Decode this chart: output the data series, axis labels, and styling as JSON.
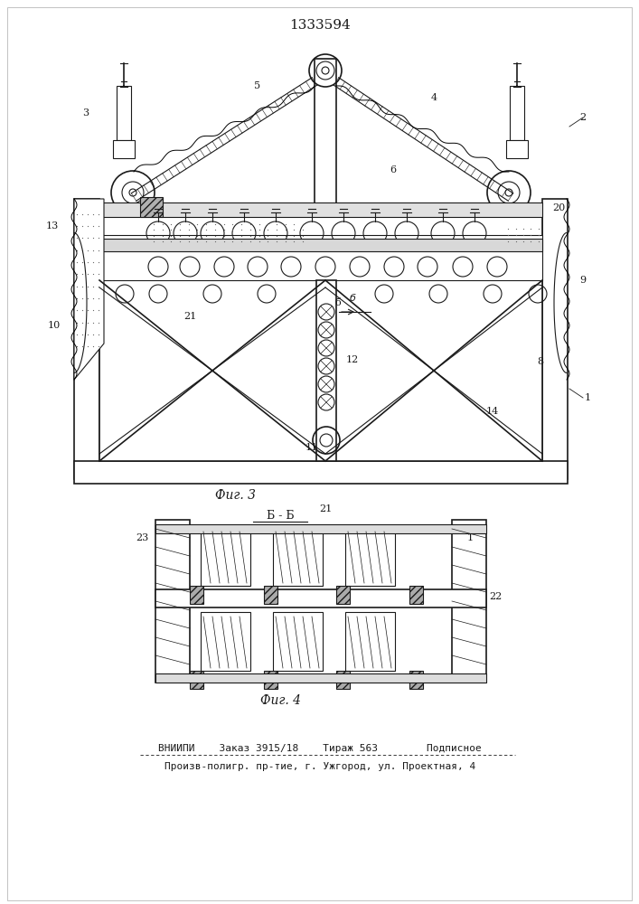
{
  "patent_number": "1333594",
  "fig3_label": "Фиг. 3",
  "fig4_label": "Фиг. 4",
  "footer_line1": "ВНИИПИ    Заказ 3915/18    Тираж 563        Подписное",
  "footer_line2": "Произв-полигр. пр-тие, г. Ужгород, ул. Проектная, 4",
  "bg_color": "#ffffff",
  "line_color": "#1a1a1a"
}
